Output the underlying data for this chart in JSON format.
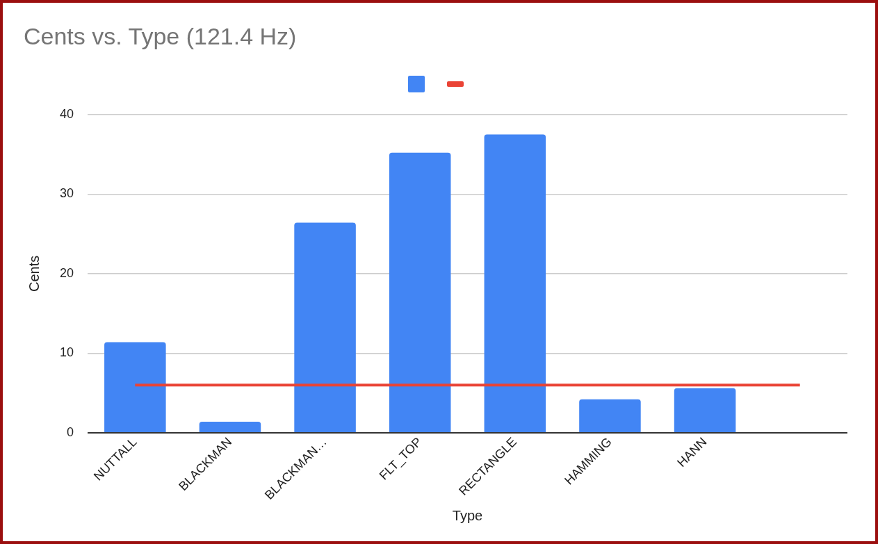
{
  "chart_data": {
    "type": "bar",
    "title": "Cents vs. Type (121.4 Hz)",
    "xlabel": "Type",
    "ylabel": "Cents",
    "categories": [
      "NUTTALL",
      "BLACKMAN",
      "BLACKMAN…",
      "FLT_TOP",
      "RECTANGLE",
      "HAMMING",
      "HANN",
      null
    ],
    "series": [
      {
        "color": "#4285f4",
        "values": [
          11.4,
          1.4,
          26.4,
          35.2,
          37.5,
          4.2,
          5.6,
          null
        ]
      },
      {
        "type": "line",
        "color": "#ea4335",
        "values": [
          6.0,
          6.0,
          6.0,
          6.0,
          6.0,
          6.0,
          6.0,
          6.0
        ]
      }
    ],
    "ylim": [
      0,
      40
    ],
    "yticks": [
      0,
      10,
      20,
      30,
      40
    ],
    "grid": "y",
    "marker": "none"
  }
}
